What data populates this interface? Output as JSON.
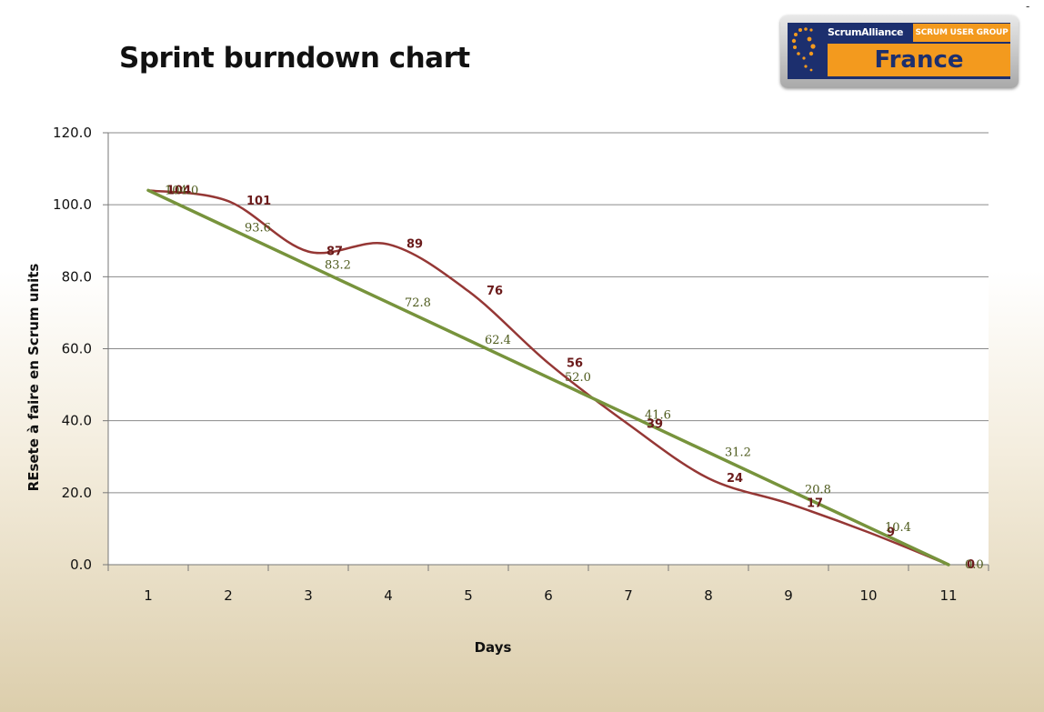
{
  "page": {
    "title": "Sprint burndown chart",
    "corner_mark": "-"
  },
  "logo": {
    "brand": "ScrumAlliance",
    "group": "SCRUM USER GROUP",
    "country": "France",
    "colors": {
      "navy": "#1c2f6e",
      "orange": "#f39a1e"
    }
  },
  "chart_data": {
    "type": "line",
    "title": "Sprint burndown chart",
    "xlabel": "Days",
    "ylabel": "REsete à faire en Scrum units",
    "categories": [
      "1",
      "2",
      "3",
      "4",
      "5",
      "6",
      "7",
      "8",
      "9",
      "10",
      "11"
    ],
    "ylim": [
      0,
      120
    ],
    "yticks": [
      "0.0",
      "20.0",
      "40.0",
      "60.0",
      "80.0",
      "100.0",
      "120.0"
    ],
    "grid": true,
    "legend": "none",
    "series": [
      {
        "values": [
          104,
          101,
          87,
          89,
          76,
          56,
          39,
          24,
          17,
          9,
          0
        ],
        "labels": [
          "104",
          "101",
          "87",
          "89",
          "76",
          "56",
          "39",
          "24",
          "17",
          "9",
          "0"
        ],
        "color": "#953735",
        "smooth": true
      },
      {
        "values": [
          104.0,
          93.6,
          83.2,
          72.8,
          62.4,
          52.0,
          41.6,
          31.2,
          20.8,
          10.4,
          0.0
        ],
        "labels": [
          "104.0",
          "93.6",
          "83.2",
          "72.8",
          "62.4",
          "52.0",
          "41.6",
          "31.2",
          "20.8",
          "10.4",
          "0.0"
        ],
        "color": "#77933c",
        "smooth": false
      }
    ]
  }
}
